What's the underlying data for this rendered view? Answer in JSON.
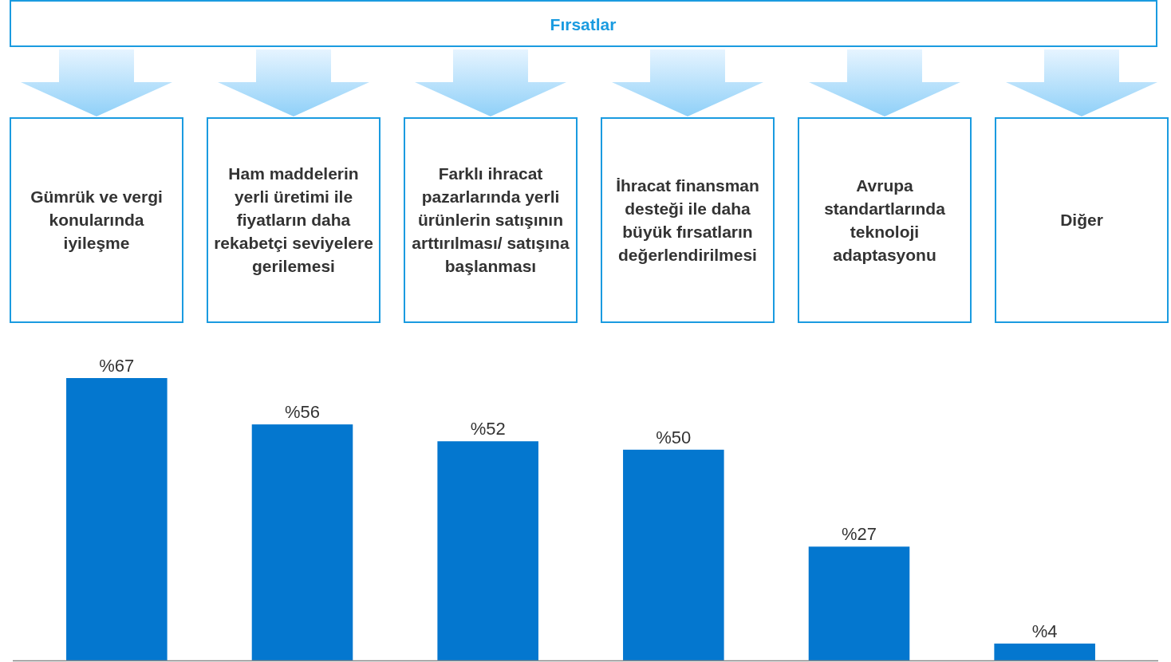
{
  "chart_data": {
    "type": "bar",
    "title": "Fırsatlar",
    "categories": [
      "Gümrük ve vergi konularında iyileşme",
      "Ham maddelerin yerli üretimi ile fiyatların daha rekabetçi seviyelere gerilemesi",
      "Farklı ihracat pazarlarında yerli ürünlerin satışının arttırılması/ satışına başlanması",
      "İhracat finansman desteği ile daha büyük fırsatların değerlendirilmesi",
      "Avrupa standartlarında teknoloji adaptasyonu",
      "Diğer"
    ],
    "values": [
      67,
      56,
      52,
      50,
      27,
      4
    ],
    "value_labels": [
      "%67",
      "%56",
      "%52",
      "%50",
      "%27",
      "%4"
    ],
    "color": "#0477cf"
  }
}
